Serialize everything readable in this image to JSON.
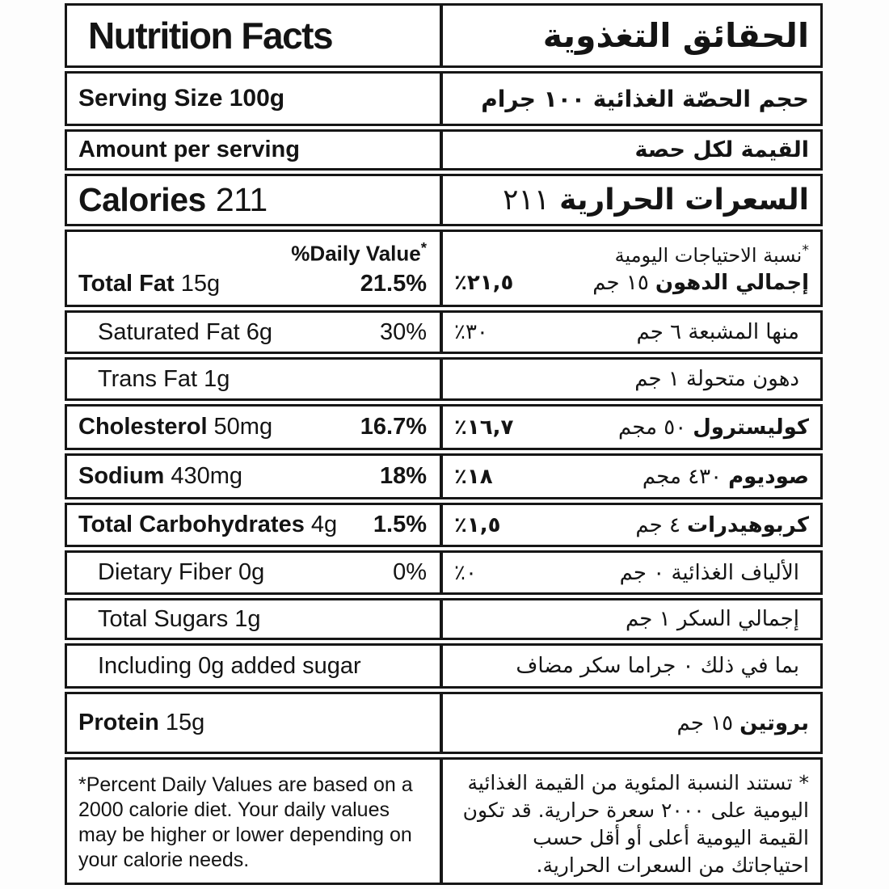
{
  "label": {
    "title": {
      "en": "Nutrition Facts",
      "ar": "الحقائق التغذوية"
    },
    "serving": {
      "en": "Serving Size 100g",
      "ar": "حجم الحصّة الغذائية ١٠٠ جرام"
    },
    "amount": {
      "en": "Amount per serving",
      "ar": "القيمة لكل حصة"
    },
    "calories": {
      "en_label": "Calories",
      "en_value": "211",
      "ar_label": "السعرات الحرارية",
      "ar_value": "٢١١"
    },
    "dv_header": {
      "en": "%Daily Value",
      "star": "*",
      "ar": "نسبة الاحتياجات اليومية"
    },
    "nutrients": [
      {
        "en_bold": "Total Fat",
        "en_reg": "15g",
        "en_pct": "21.5%",
        "ar_bold": "إجمالي الدهون",
        "ar_reg": "١٥ جم",
        "ar_pct": "٪٢١,٥"
      },
      {
        "en_reg": "Saturated Fat 6g",
        "en_pct": "30%",
        "ar_reg": "منها المشبعة ٦ جم",
        "ar_pct": "٪٣٠"
      },
      {
        "en_reg": "Trans Fat 1g",
        "ar_reg": "دهون متحولة ١ جم"
      },
      {
        "en_bold": "Cholesterol",
        "en_reg": "50mg",
        "en_pct": "16.7%",
        "ar_bold": "كوليسترول",
        "ar_reg": "٥٠ مجم",
        "ar_pct": "٪١٦,٧"
      },
      {
        "en_bold": "Sodium",
        "en_reg": "430mg",
        "en_pct": "18%",
        "ar_bold": "صوديوم",
        "ar_reg": "٤٣٠ مجم",
        "ar_pct": "٪١٨"
      },
      {
        "en_bold": "Total Carbohydrates",
        "en_reg": "4g",
        "en_pct": "1.5%",
        "ar_bold": "كربوهيدرات",
        "ar_reg": "٤ جم",
        "ar_pct": "٪١,٥"
      },
      {
        "en_reg": "Dietary Fiber 0g",
        "en_pct": "0%",
        "ar_reg": "الألياف الغذائية ٠ جم",
        "ar_pct": "٪٠"
      },
      {
        "en_reg": "Total Sugars 1g",
        "ar_reg": "إجمالي السكر ١ جم"
      },
      {
        "en_reg": "Including 0g added sugar",
        "ar_reg": "بما في ذلك ٠ جراما سكر مضاف"
      },
      {
        "en_bold": "Protein",
        "en_reg": "15g",
        "ar_bold": "بروتين",
        "ar_reg": "١٥ جم"
      }
    ],
    "footnote": {
      "en": "*Percent Daily Values are based on a 2000 calorie diet. Your daily values may be higher or lower depending on your calorie needs.",
      "ar": "* تستند النسبة المئوية من القيمة الغذائية اليومية على ٢٠٠٠ سعرة حرارية. قد تكون القيمة اليومية أعلى أو أقل حسب احتياجاتك من السعرات الحرارية."
    }
  }
}
